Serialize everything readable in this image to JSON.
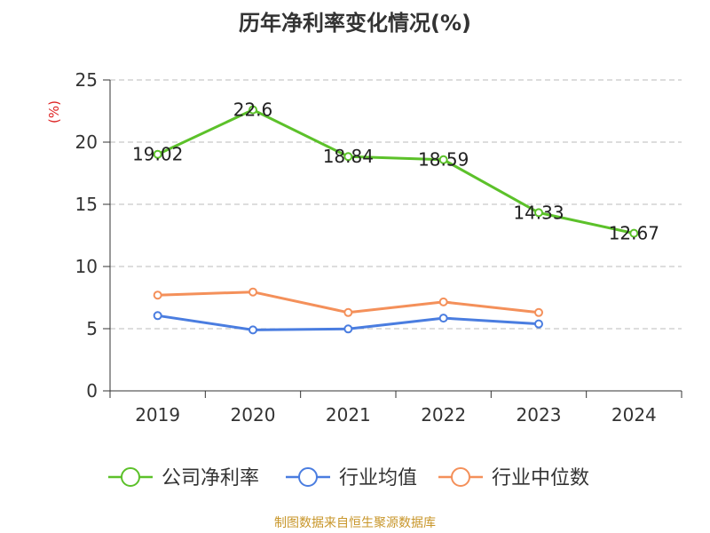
{
  "chart_data": {
    "type": "line",
    "title": "历年净利率变化情况(%)",
    "y_unit_label": "(%)",
    "categories": [
      "2019",
      "2020",
      "2021",
      "2022",
      "2023",
      "2024"
    ],
    "ylim": [
      0,
      25
    ],
    "yticks": [
      0,
      5,
      10,
      15,
      20,
      25
    ],
    "grid": "horizontal-dashed",
    "legend_position": "bottom",
    "series": [
      {
        "name": "公司净利率",
        "color": "#5cc12a",
        "values": [
          19.02,
          22.6,
          18.84,
          18.59,
          14.33,
          12.67
        ],
        "labels": [
          "19.02",
          "22.6",
          "18.84",
          "18.59",
          "14.33",
          "12.67"
        ]
      },
      {
        "name": "行业均值",
        "color": "#4a7de0",
        "values": [
          6.05,
          4.9,
          4.98,
          5.85,
          5.38,
          null
        ]
      },
      {
        "name": "行业中位数",
        "color": "#f4905a",
        "values": [
          7.7,
          7.95,
          6.3,
          7.15,
          6.3,
          null
        ]
      }
    ]
  },
  "source": {
    "text": "制图数据来自恒生聚源数据库",
    "color": "#c8962a"
  },
  "colors": {
    "unit_label": "#dd2222",
    "axis": "#333333",
    "grid": "#bbbbbb"
  }
}
